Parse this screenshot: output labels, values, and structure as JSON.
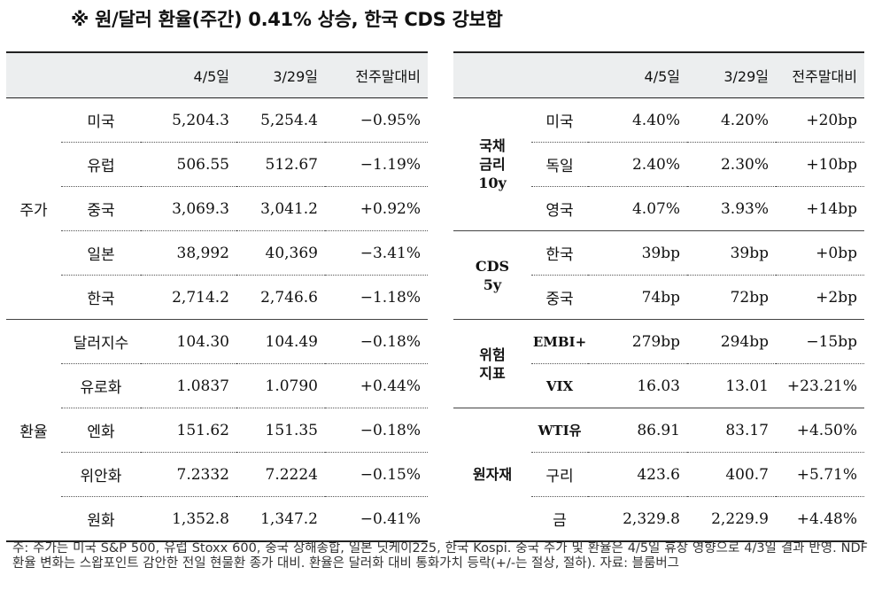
{
  "title": "※ 원/달러 환율(주간) 0.41% 상승, 한국 CDS 강보합",
  "headers": [
    "4/5일",
    "3/29일",
    "전주말대비"
  ],
  "left_groups": [
    {
      "name": "주가",
      "rows": [
        {
          "label": "미국",
          "cur": "5,204.3",
          "prev": "5,254.4",
          "chg": "−0.95%"
        },
        {
          "label": "유럽",
          "cur": "506.55",
          "prev": "512.67",
          "chg": "−1.19%"
        },
        {
          "label": "중국",
          "cur": "3,069.3",
          "prev": "3,041.2",
          "chg": "+0.92%"
        },
        {
          "label": "일본",
          "cur": "38,992",
          "prev": "40,369",
          "chg": "−3.41%"
        },
        {
          "label": "한국",
          "cur": "2,714.2",
          "prev": "2,746.6",
          "chg": "−1.18%"
        }
      ]
    },
    {
      "name": "환율",
      "rows": [
        {
          "label": "달러지수",
          "cur": "104.30",
          "prev": "104.49",
          "chg": "−0.18%"
        },
        {
          "label": "유로화",
          "cur": "1.0837",
          "prev": "1.0790",
          "chg": "+0.44%"
        },
        {
          "label": "엔화",
          "cur": "151.62",
          "prev": "151.35",
          "chg": "−0.18%"
        },
        {
          "label": "위안화",
          "cur": "7.2332",
          "prev": "7.2224",
          "chg": "−0.15%"
        },
        {
          "label": "원화",
          "cur": "1,352.8",
          "prev": "1,347.2",
          "chg": "−0.41%"
        }
      ]
    }
  ],
  "right_groups": [
    {
      "name": "국채\n금리\n10y",
      "rows": [
        {
          "label": "미국",
          "cur": "4.40%",
          "prev": "4.20%",
          "chg": "+20bp"
        },
        {
          "label": "독일",
          "cur": "2.40%",
          "prev": "2.30%",
          "chg": "+10bp"
        },
        {
          "label": "영국",
          "cur": "4.07%",
          "prev": "3.93%",
          "chg": "+14bp"
        }
      ]
    },
    {
      "name": "CDS\n5y",
      "rows": [
        {
          "label": "한국",
          "cur": "39bp",
          "prev": "39bp",
          "chg": "+0bp"
        },
        {
          "label": "중국",
          "cur": "74bp",
          "prev": "72bp",
          "chg": "+2bp"
        }
      ]
    },
    {
      "name": "위험\n지표",
      "rows": [
        {
          "label": "EMBI+",
          "cur": "279bp",
          "prev": "294bp",
          "chg": "−15bp"
        },
        {
          "label": "VIX",
          "cur": "16.03",
          "prev": "13.01",
          "chg": "+23.21%"
        }
      ]
    },
    {
      "name": "원자재",
      "rows": [
        {
          "label": "WTI유",
          "cur": "86.91",
          "prev": "83.17",
          "chg": "+4.50%"
        },
        {
          "label": "구리",
          "cur": "423.6",
          "prev": "400.7",
          "chg": "+5.71%"
        },
        {
          "label": "금",
          "cur": "2,329.8",
          "prev": "2,229.9",
          "chg": "+4.48%"
        }
      ]
    }
  ],
  "footnote": "주: 주가는 미국 S&P 500, 유럽 Stoxx 600, 중국 상해종합, 일본 닛케이225, 한국 Kospi. 중국 주가 및 환율은 4/5일 휴장 영향으로 4/3일 결과 반영. NDF 환율 변화는 스왑포인트 감안한 전일 현물환 종가 대비. 환율은 달러화 대비 통화가치 등락(+/-는 절상, 절하). 자료: 블룸버그"
}
